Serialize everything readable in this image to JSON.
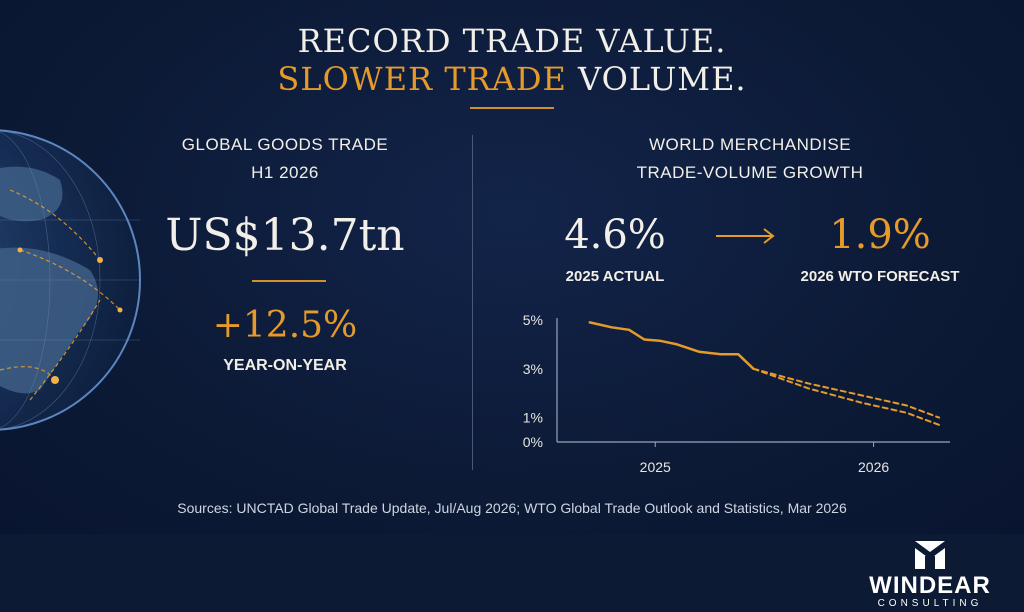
{
  "title": {
    "line1": "RECORD TRADE VALUE.",
    "line2_highlight": "SLOWER TRADE",
    "line2_rest": " VOLUME."
  },
  "left_panel": {
    "heading_line1": "GLOBAL GOODS TRADE",
    "heading_line2": "H1 2026",
    "value": "US$13.7tn",
    "change": "+12.5%",
    "change_label": "YEAR-ON-YEAR"
  },
  "right_panel": {
    "heading_line1": "WORLD MERCHANDISE",
    "heading_line2": "TRADE-VOLUME GROWTH",
    "actual_value": "4.6%",
    "actual_label": "2025 ACTUAL",
    "arrow": "→",
    "forecast_value": "1.9%",
    "forecast_label": "2026 WTO FORECAST"
  },
  "sources": "Sources: UNCTAD Global Trade Update, Jul/Aug 2026; WTO Global Trade Outlook and Statistics, Mar 2026",
  "logo": {
    "name": "WINDEAR",
    "sub": "CONSULTING"
  },
  "colors": {
    "accent": "#e69a2a",
    "background": "#0c1a36",
    "text": "#f2efe8"
  },
  "chart_data": {
    "type": "line",
    "title": "",
    "xlabel": "",
    "ylabel": "",
    "x_ticks": [
      "2025",
      "2026"
    ],
    "x_tick_values": [
      2025.0,
      2026.0
    ],
    "xlim": [
      2024.55,
      2026.35
    ],
    "y_ticks": [
      "5%",
      "3%",
      "1%",
      "0%"
    ],
    "y_tick_values": [
      5,
      3,
      1,
      0
    ],
    "ylim": [
      0,
      5
    ],
    "grid": false,
    "series": [
      {
        "style": "solid",
        "x": [
          2024.7,
          2024.8,
          2024.88,
          2024.95,
          2025.02,
          2025.1,
          2025.2,
          2025.3,
          2025.38,
          2025.45
        ],
        "y": [
          4.9,
          4.7,
          4.6,
          4.2,
          4.15,
          4.0,
          3.7,
          3.6,
          3.6,
          3.0
        ]
      },
      {
        "style": "dashed",
        "x": [
          2025.45,
          2025.7,
          2025.95,
          2026.15,
          2026.3
        ],
        "y": [
          3.0,
          2.4,
          1.9,
          1.5,
          1.0
        ]
      },
      {
        "style": "dashed",
        "x": [
          2025.45,
          2025.7,
          2025.95,
          2026.15,
          2026.3
        ],
        "y": [
          3.0,
          2.2,
          1.6,
          1.2,
          0.7
        ]
      }
    ]
  }
}
